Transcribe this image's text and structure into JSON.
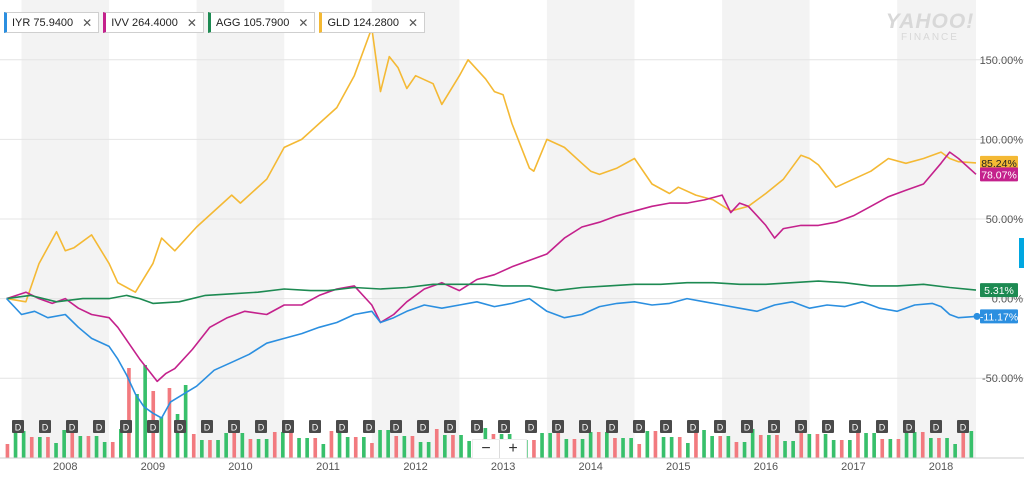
{
  "legend": [
    {
      "symbol": "IYR",
      "price": "75.9400",
      "color": "#2b8fe0"
    },
    {
      "symbol": "IVV",
      "price": "264.4000",
      "color": "#c4218c"
    },
    {
      "symbol": "AGG",
      "price": "105.7900",
      "color": "#1d8a52"
    },
    {
      "symbol": "GLD",
      "price": "124.2800",
      "color": "#f4b934"
    }
  ],
  "close_glyph": "✕",
  "watermark": {
    "line1": "YAHOO!",
    "line2": "FINANCE"
  },
  "zoom": {
    "out": "−",
    "in": "+"
  },
  "chart_data": {
    "type": "line",
    "x_range": [
      2007.3,
      2018.4
    ],
    "ylim": [
      -75,
      175
    ],
    "y_ticks": [
      150,
      100,
      50,
      0,
      -50
    ],
    "y_tick_labels": [
      "150.00%",
      "100.00%",
      "50.00%",
      "0.00%",
      "-50.00%"
    ],
    "x_ticks": [
      2008,
      2009,
      2010,
      2011,
      2012,
      2013,
      2014,
      2015,
      2016,
      2017,
      2018
    ],
    "x_tick_labels": [
      "2008",
      "2009",
      "2010",
      "2011",
      "2012",
      "2013",
      "2014",
      "2015",
      "2016",
      "2017",
      "2018"
    ],
    "grid": true,
    "series": [
      {
        "name": "GLD",
        "color": "#f4b934",
        "last_label": "85.24%",
        "x": [
          2007.33,
          2007.55,
          2007.7,
          2007.9,
          2008.0,
          2008.1,
          2008.3,
          2008.5,
          2008.6,
          2008.8,
          2009.0,
          2009.1,
          2009.25,
          2009.5,
          2009.7,
          2009.9,
          2010.0,
          2010.3,
          2010.5,
          2010.7,
          2010.9,
          2011.1,
          2011.3,
          2011.5,
          2011.6,
          2011.7,
          2011.8,
          2011.9,
          2012.0,
          2012.2,
          2012.3,
          2012.5,
          2012.6,
          2012.7,
          2012.8,
          2012.9,
          2013.0,
          2013.1,
          2013.3,
          2013.35,
          2013.5,
          2013.7,
          2013.9,
          2014.0,
          2014.1,
          2014.3,
          2014.5,
          2014.7,
          2014.9,
          2015.0,
          2015.2,
          2015.4,
          2015.6,
          2015.8,
          2015.9,
          2016.0,
          2016.2,
          2016.4,
          2016.5,
          2016.6,
          2016.8,
          2017.0,
          2017.2,
          2017.4,
          2017.6,
          2017.8,
          2018.0,
          2018.1,
          2018.2,
          2018.4
        ],
        "y": [
          0,
          -2,
          22,
          42,
          30,
          32,
          40,
          22,
          10,
          4,
          22,
          38,
          30,
          45,
          55,
          65,
          60,
          75,
          95,
          100,
          110,
          120,
          140,
          170,
          130,
          152,
          145,
          132,
          140,
          135,
          122,
          140,
          150,
          144,
          138,
          130,
          128,
          110,
          82,
          80,
          100,
          95,
          85,
          80,
          78,
          82,
          88,
          72,
          66,
          70,
          65,
          62,
          55,
          58,
          62,
          66,
          75,
          90,
          88,
          84,
          70,
          75,
          80,
          88,
          85,
          88,
          92,
          88,
          86,
          85.24
        ]
      },
      {
        "name": "IVV",
        "color": "#c4218c",
        "last_label": "78.07%",
        "x": [
          2007.33,
          2007.55,
          2007.7,
          2007.85,
          2008.0,
          2008.15,
          2008.3,
          2008.5,
          2008.6,
          2008.75,
          2008.85,
          2008.95,
          2009.05,
          2009.15,
          2009.25,
          2009.45,
          2009.65,
          2009.85,
          2010.05,
          2010.3,
          2010.5,
          2010.7,
          2010.9,
          2011.1,
          2011.3,
          2011.5,
          2011.6,
          2011.75,
          2011.9,
          2012.1,
          2012.3,
          2012.5,
          2012.7,
          2012.9,
          2013.1,
          2013.3,
          2013.5,
          2013.7,
          2013.9,
          2014.1,
          2014.3,
          2014.5,
          2014.7,
          2014.9,
          2015.1,
          2015.3,
          2015.5,
          2015.6,
          2015.7,
          2015.8,
          2015.9,
          2016.0,
          2016.1,
          2016.2,
          2016.4,
          2016.6,
          2016.8,
          2017.0,
          2017.2,
          2017.4,
          2017.6,
          2017.8,
          2018.0,
          2018.1,
          2018.2,
          2018.4
        ],
        "y": [
          0,
          4,
          0,
          -3,
          0,
          -6,
          -10,
          -12,
          -18,
          -30,
          -38,
          -45,
          -52,
          -47,
          -44,
          -32,
          -18,
          -12,
          -8,
          -10,
          -4,
          -4,
          2,
          6,
          8,
          -4,
          -15,
          -10,
          -2,
          6,
          10,
          5,
          12,
          15,
          20,
          24,
          28,
          38,
          45,
          48,
          52,
          55,
          58,
          60,
          60,
          62,
          65,
          54,
          60,
          58,
          52,
          46,
          38,
          44,
          46,
          46,
          48,
          52,
          58,
          64,
          68,
          72,
          85,
          92,
          88,
          78.07
        ]
      },
      {
        "name": "AGG",
        "color": "#1d8a52",
        "last_label": "5.31%",
        "x": [
          2007.33,
          2007.6,
          2007.9,
          2008.2,
          2008.5,
          2008.7,
          2008.85,
          2009.0,
          2009.3,
          2009.6,
          2009.9,
          2010.2,
          2010.5,
          2010.8,
          2011.0,
          2011.3,
          2011.6,
          2011.9,
          2012.2,
          2012.5,
          2012.8,
          2013.0,
          2013.3,
          2013.6,
          2013.9,
          2014.2,
          2014.5,
          2014.8,
          2015.1,
          2015.4,
          2015.7,
          2016.0,
          2016.3,
          2016.6,
          2016.9,
          2017.2,
          2017.5,
          2017.8,
          2018.1,
          2018.4
        ],
        "y": [
          0,
          2,
          -2,
          0,
          0,
          2,
          0,
          -3,
          -2,
          2,
          3,
          4,
          6,
          5,
          5,
          7,
          6,
          7,
          9,
          9,
          9,
          8,
          8,
          5,
          7,
          8,
          9,
          9,
          10,
          10,
          9,
          9,
          10,
          11,
          10,
          8,
          8,
          9,
          7,
          5.31
        ]
      },
      {
        "name": "IYR",
        "color": "#2b8fe0",
        "last_label": "-11.17%",
        "x": [
          2007.33,
          2007.5,
          2007.65,
          2007.8,
          2008.0,
          2008.15,
          2008.3,
          2008.5,
          2008.6,
          2008.7,
          2008.8,
          2008.9,
          2009.0,
          2009.1,
          2009.2,
          2009.35,
          2009.5,
          2009.7,
          2009.9,
          2010.1,
          2010.3,
          2010.5,
          2010.7,
          2010.9,
          2011.1,
          2011.3,
          2011.5,
          2011.6,
          2011.75,
          2011.9,
          2012.1,
          2012.3,
          2012.5,
          2012.7,
          2012.9,
          2013.1,
          2013.3,
          2013.5,
          2013.7,
          2013.9,
          2014.1,
          2014.3,
          2014.5,
          2014.7,
          2014.9,
          2015.1,
          2015.3,
          2015.5,
          2015.7,
          2015.9,
          2016.1,
          2016.3,
          2016.5,
          2016.7,
          2016.9,
          2017.1,
          2017.3,
          2017.5,
          2017.7,
          2017.9,
          2018.0,
          2018.1,
          2018.2,
          2018.4
        ],
        "y": [
          0,
          -10,
          -8,
          -12,
          -10,
          -18,
          -25,
          -30,
          -38,
          -48,
          -60,
          -68,
          -72,
          -75,
          -65,
          -60,
          -55,
          -45,
          -40,
          -35,
          -28,
          -25,
          -22,
          -18,
          -15,
          -10,
          -8,
          -15,
          -12,
          -8,
          -4,
          -6,
          -4,
          -2,
          -5,
          -3,
          0,
          -8,
          -12,
          -10,
          -5,
          -3,
          -2,
          -4,
          -3,
          0,
          -2,
          -4,
          -6,
          -8,
          -4,
          -2,
          -6,
          -4,
          -5,
          -2,
          -6,
          -8,
          -4,
          -3,
          -5,
          -10,
          -12,
          -11.17
        ]
      }
    ],
    "dividend_markers": {
      "label": "D",
      "count": 36
    },
    "volume": {
      "count": 120,
      "colors": {
        "up": "#38c06b",
        "down": "#f27a7f"
      }
    }
  }
}
